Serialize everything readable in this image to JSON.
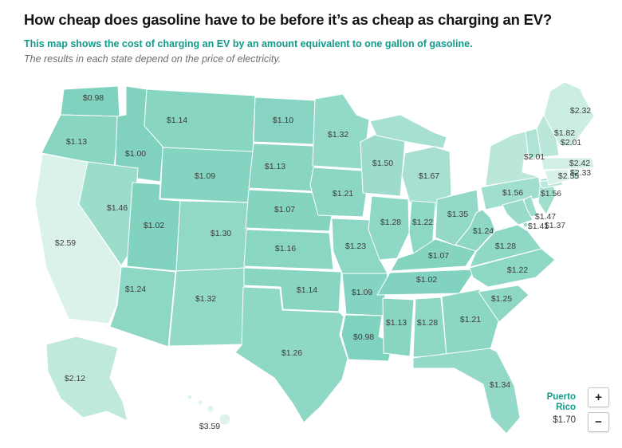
{
  "header": {
    "title": "How cheap does gasoline have to be before it’s as cheap as charging an EV?",
    "subtitle": "This map shows the cost of charging an EV by an amount equivalent to one gallon of gasoline.",
    "note": "The results in each state depend on the price of electricity."
  },
  "colors": {
    "title_text": "#141414",
    "subtitle_accent": "#149a8a",
    "note_gray": "#6e6e6e",
    "state_label_text": "#3c3c3c",
    "state_border": "#ffffff",
    "scale_low_color": "#7fd2be",
    "scale_high_color": "#ddf3eb"
  },
  "map_controls": {
    "zoom_in": "+",
    "zoom_out": "−"
  },
  "chart_data": {
    "type": "choropleth",
    "region": "United States",
    "unit": "USD, gasoline price per gallon at which charging an EV costs the same",
    "color_scale": {
      "low_value": 0.98,
      "high_value": 2.62,
      "low_color": "#7fd2be",
      "high_color": "#ddf3eb",
      "note": "darker teal = cheaper, paler = more expensive"
    },
    "states": [
      {
        "id": "WA",
        "name": "Washington",
        "value": 0.98,
        "label": "$0.98"
      },
      {
        "id": "OR",
        "name": "Oregon",
        "value": 1.13,
        "label": "$1.13"
      },
      {
        "id": "CA",
        "name": "California",
        "value": 2.59,
        "label": "$2.59"
      },
      {
        "id": "ID",
        "name": "Idaho",
        "value": 1.0,
        "label": "$1.00"
      },
      {
        "id": "NV",
        "name": "Nevada",
        "value": 1.46,
        "label": "$1.46"
      },
      {
        "id": "MT",
        "name": "Montana",
        "value": 1.14,
        "label": "$1.14"
      },
      {
        "id": "WY",
        "name": "Wyoming",
        "value": 1.09,
        "label": "$1.09"
      },
      {
        "id": "UT",
        "name": "Utah",
        "value": 1.02,
        "label": "$1.02"
      },
      {
        "id": "CO",
        "name": "Colorado",
        "value": 1.3,
        "label": "$1.30"
      },
      {
        "id": "AZ",
        "name": "Arizona",
        "value": 1.24,
        "label": "$1.24"
      },
      {
        "id": "NM",
        "name": "New Mexico",
        "value": 1.32,
        "label": "$1.32"
      },
      {
        "id": "ND",
        "name": "North Dakota",
        "value": 1.1,
        "label": "$1.10"
      },
      {
        "id": "SD",
        "name": "South Dakota",
        "value": 1.13,
        "label": "$1.13"
      },
      {
        "id": "NE",
        "name": "Nebraska",
        "value": 1.07,
        "label": "$1.07"
      },
      {
        "id": "KS",
        "name": "Kansas",
        "value": 1.16,
        "label": "$1.16"
      },
      {
        "id": "OK",
        "name": "Oklahoma",
        "value": 1.14,
        "label": "$1.14"
      },
      {
        "id": "TX",
        "name": "Texas",
        "value": 1.26,
        "label": "$1.26"
      },
      {
        "id": "MN",
        "name": "Minnesota",
        "value": 1.32,
        "label": "$1.32"
      },
      {
        "id": "IA",
        "name": "Iowa",
        "value": 1.21,
        "label": "$1.21"
      },
      {
        "id": "MO",
        "name": "Missouri",
        "value": 1.23,
        "label": "$1.23"
      },
      {
        "id": "AR",
        "name": "Arkansas",
        "value": 1.09,
        "label": "$1.09"
      },
      {
        "id": "LA",
        "name": "Louisiana",
        "value": 0.98,
        "label": "$0.98"
      },
      {
        "id": "WI",
        "name": "Wisconsin",
        "value": 1.5,
        "label": "$1.50"
      },
      {
        "id": "IL",
        "name": "Illinois",
        "value": 1.28,
        "label": "$1.28"
      },
      {
        "id": "MI",
        "name": "Michigan",
        "value": 1.67,
        "label": "$1.67"
      },
      {
        "id": "IN",
        "name": "Indiana",
        "value": 1.22,
        "label": "$1.22"
      },
      {
        "id": "OH",
        "name": "Ohio",
        "value": 1.35,
        "label": "$1.35"
      },
      {
        "id": "KY",
        "name": "Kentucky",
        "value": 1.07,
        "label": "$1.07"
      },
      {
        "id": "TN",
        "name": "Tennessee",
        "value": 1.02,
        "label": "$1.02"
      },
      {
        "id": "MS",
        "name": "Mississippi",
        "value": 1.13,
        "label": "$1.13"
      },
      {
        "id": "AL",
        "name": "Alabama",
        "value": 1.28,
        "label": "$1.28"
      },
      {
        "id": "GA",
        "name": "Georgia",
        "value": 1.21,
        "label": "$1.21"
      },
      {
        "id": "FL",
        "name": "Florida",
        "value": 1.34,
        "label": "$1.34"
      },
      {
        "id": "SC",
        "name": "South Carolina",
        "value": 1.25,
        "label": "$1.25"
      },
      {
        "id": "NC",
        "name": "North Carolina",
        "value": 1.22,
        "label": "$1.22"
      },
      {
        "id": "VA",
        "name": "Virginia",
        "value": 1.28,
        "label": "$1.28"
      },
      {
        "id": "WV",
        "name": "West Virginia",
        "value": 1.24,
        "label": "$1.24"
      },
      {
        "id": "PA",
        "name": "Pennsylvania",
        "value": 1.56,
        "label": "$1.56"
      },
      {
        "id": "NJ",
        "name": "New Jersey",
        "value": 1.56,
        "label": "$1.56"
      },
      {
        "id": "NY",
        "name": "New York",
        "value": 2.01,
        "label": "$2.01"
      },
      {
        "id": "VT",
        "name": "Vermont",
        "value": 1.82,
        "label": "$1.82"
      },
      {
        "id": "NH",
        "name": "New Hampshire",
        "value": 2.01,
        "label": "$2.01"
      },
      {
        "id": "ME",
        "name": "Maine",
        "value": 2.32,
        "label": "$2.32"
      },
      {
        "id": "MA",
        "name": "Massachusetts",
        "value": 2.42,
        "label": "$2.42"
      },
      {
        "id": "RI",
        "name": "Rhode Island",
        "value": 2.33,
        "label": "$2.33"
      },
      {
        "id": "CT",
        "name": "Connecticut",
        "value": 2.55,
        "label": "$2.55"
      },
      {
        "id": "DE",
        "name": "Delaware",
        "value": 1.47,
        "label": "$1.47"
      },
      {
        "id": "MD",
        "name": "Maryland",
        "value": 1.41,
        "label": "$1.41"
      },
      {
        "id": "DC",
        "name": "District of Columbia",
        "value": 1.37,
        "label": "$1.37"
      },
      {
        "id": "AK",
        "name": "Alaska",
        "value": 2.12,
        "label": "$2.12"
      },
      {
        "id": "HI",
        "name": "Hawaii",
        "value": 3.59,
        "label": "$3.59"
      }
    ],
    "puerto_rico": {
      "name": "Puerto Rico",
      "value": 1.7,
      "label": "$1.70"
    }
  }
}
